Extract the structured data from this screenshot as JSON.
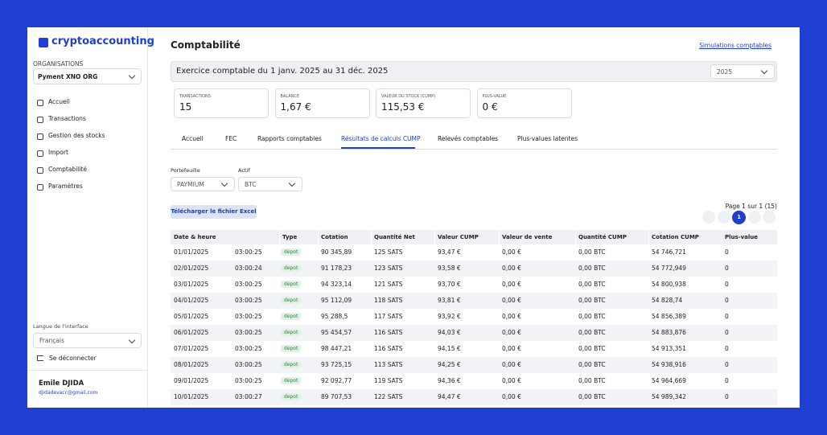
{
  "sidebar": {
    "logo": "cryptoaccounting",
    "org_label": "ORGANISATIONS",
    "org": "Pyment XNO ORG",
    "nav": [
      "Accueil",
      "Transactions",
      "Gestion des stocks",
      "Import",
      "Comptabilité",
      "Paramètres"
    ],
    "lang_label": "Langue de l'interface",
    "lang": "Français",
    "logout": "Se déconnecter",
    "user_name": "Emile DJIDA",
    "user_email": "djidadevacc@gmail.com"
  },
  "header": {
    "title": "Comptabilité",
    "link": "Simulations comptables"
  },
  "exercise": {
    "label": "Exercice comptable du 1 janv. 2025 au 31 déc. 2025",
    "year": "2025"
  },
  "stats": [
    {
      "label": "TRANSACTIONS",
      "value": "15"
    },
    {
      "label": "BALANCE",
      "value": "1,67 €"
    },
    {
      "label": "VALEUR DU STOCK (CUMP)",
      "value": "115,53 €"
    },
    {
      "label": "PLUS-VALUE",
      "value": "0 €"
    }
  ],
  "tabs": [
    "Accueil",
    "FEC",
    "Rapports comptables",
    "Résultats de calculs CUMP",
    "Relevés comptables",
    "Plus-values latentes"
  ],
  "filters": {
    "portfolio_label": "Portefeuille",
    "portfolio": "PAYMIUM",
    "asset_label": "Actif",
    "asset": "BTC"
  },
  "download": "Télécharger le fichier Excel",
  "pagination": {
    "info": "Page 1 sur 1 (15)",
    "current": "1"
  },
  "table": {
    "columns": [
      "Date & heure",
      "Type",
      "Cotation",
      "Quantité Net",
      "Valeur CUMP",
      "Valeur de vente",
      "Quantité CUMP",
      "Cotation CUMP",
      "Plus-value"
    ],
    "rows": [
      [
        "01/01/2025",
        "03:00:25",
        "depot",
        "90 345,89",
        "125 SATS",
        "93,47 €",
        "0,00 €",
        "0,00 BTC",
        "54 746,721",
        "0"
      ],
      [
        "02/01/2025",
        "03:00:24",
        "depot",
        "91 178,23",
        "123 SATS",
        "93,58 €",
        "0,00 €",
        "0,00 BTC",
        "54 772,949",
        "0"
      ],
      [
        "03/01/2025",
        "03:00:25",
        "depot",
        "94 323,14",
        "121 SATS",
        "93,70 €",
        "0,00 €",
        "0,00 BTC",
        "54 800,938",
        "0"
      ],
      [
        "04/01/2025",
        "03:00:25",
        "depot",
        "95 112,09",
        "118 SATS",
        "93,81 €",
        "0,00 €",
        "0,00 BTC",
        "54 828,74",
        "0"
      ],
      [
        "05/01/2025",
        "03:00:25",
        "depot",
        "95 288,5",
        "117 SATS",
        "93,92 €",
        "0,00 €",
        "0,00 BTC",
        "54 856,389",
        "0"
      ],
      [
        "06/01/2025",
        "03:00:25",
        "depot",
        "95 454,57",
        "116 SATS",
        "94,03 €",
        "0,00 €",
        "0,00 BTC",
        "54 883,876",
        "0"
      ],
      [
        "07/01/2025",
        "03:00:25",
        "depot",
        "98 447,21",
        "116 SATS",
        "94,15 €",
        "0,00 €",
        "0,00 BTC",
        "54 913,351",
        "0"
      ],
      [
        "08/01/2025",
        "03:00:25",
        "depot",
        "93 725,15",
        "113 SATS",
        "94,25 €",
        "0,00 €",
        "0,00 BTC",
        "54 938,916",
        "0"
      ],
      [
        "09/01/2025",
        "03:00:25",
        "depot",
        "92 092,77",
        "119 SATS",
        "94,36 €",
        "0,00 €",
        "0,00 BTC",
        "54 964,669",
        "0"
      ],
      [
        "10/01/2025",
        "03:00:27",
        "depot",
        "89 707,53",
        "122 SATS",
        "94,47 €",
        "0,00 €",
        "0,00 BTC",
        "54 989,342",
        "0"
      ]
    ]
  }
}
